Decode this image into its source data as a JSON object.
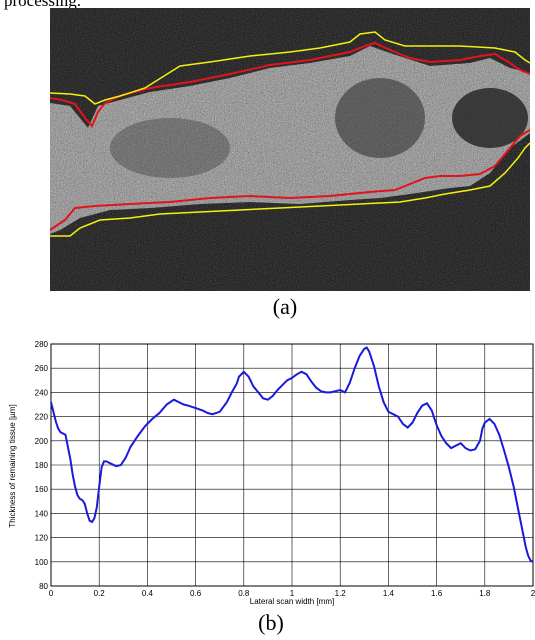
{
  "top_text": "processing.",
  "panel_a": {
    "caption": "(a)",
    "colors": {
      "background": "#0a0a0a",
      "tissue": "#8a8a8a",
      "inner_boundary": "#e3131b",
      "outer_boundary": "#f2f20e"
    }
  },
  "panel_b": {
    "caption": "(b)"
  },
  "chart_data": {
    "type": "line",
    "title": "",
    "xlabel": "Lateral scan width [mm]",
    "ylabel": "Thickness of remaining tissue [µm]",
    "xlim": [
      0,
      2
    ],
    "ylim": [
      80,
      280
    ],
    "xticks": [
      "0",
      "0.2",
      "0.4",
      "0.6",
      "0.8",
      "1",
      "1.2",
      "1.4",
      "1.6",
      "1.8",
      "2"
    ],
    "yticks": [
      "80",
      "100",
      "120",
      "140",
      "160",
      "180",
      "200",
      "220",
      "240",
      "260",
      "280"
    ],
    "grid": true,
    "series": [
      {
        "color": "#1a1adb",
        "x": [
          0,
          0.01,
          0.02,
          0.03,
          0.04,
          0.05,
          0.06,
          0.07,
          0.08,
          0.09,
          0.1,
          0.11,
          0.12,
          0.13,
          0.14,
          0.15,
          0.16,
          0.17,
          0.18,
          0.19,
          0.2,
          0.21,
          0.22,
          0.23,
          0.24,
          0.25,
          0.27,
          0.29,
          0.31,
          0.33,
          0.36,
          0.39,
          0.42,
          0.45,
          0.48,
          0.51,
          0.53,
          0.55,
          0.57,
          0.6,
          0.63,
          0.65,
          0.67,
          0.7,
          0.73,
          0.75,
          0.77,
          0.78,
          0.8,
          0.82,
          0.84,
          0.86,
          0.88,
          0.9,
          0.92,
          0.94,
          0.96,
          0.98,
          1.0,
          1.02,
          1.04,
          1.06,
          1.08,
          1.1,
          1.12,
          1.14,
          1.16,
          1.18,
          1.2,
          1.22,
          1.24,
          1.26,
          1.28,
          1.3,
          1.31,
          1.32,
          1.34,
          1.36,
          1.38,
          1.4,
          1.42,
          1.44,
          1.46,
          1.48,
          1.5,
          1.52,
          1.54,
          1.56,
          1.58,
          1.6,
          1.62,
          1.64,
          1.66,
          1.68,
          1.7,
          1.72,
          1.74,
          1.76,
          1.78,
          1.79,
          1.8,
          1.82,
          1.84,
          1.86,
          1.88,
          1.9,
          1.92,
          1.94,
          1.96,
          1.97,
          1.98,
          1.99,
          2.0
        ],
        "values": [
          232,
          224,
          216,
          210,
          207,
          206,
          205,
          195,
          185,
          172,
          162,
          155,
          152,
          151,
          148,
          140,
          134,
          133,
          136,
          145,
          162,
          178,
          183,
          183,
          182,
          181,
          179,
          180,
          186,
          195,
          204,
          212,
          218,
          223,
          230,
          234,
          232,
          230,
          229,
          227,
          225,
          223,
          222,
          224,
          232,
          240,
          247,
          253,
          257,
          253,
          245,
          240,
          235,
          234,
          237,
          242,
          246,
          250,
          252,
          255,
          257,
          255,
          249,
          244,
          241,
          240,
          240,
          241,
          242,
          240,
          248,
          260,
          270,
          276,
          277,
          274,
          262,
          245,
          232,
          224,
          222,
          220,
          214,
          211,
          215,
          223,
          229,
          231,
          225,
          213,
          204,
          198,
          194,
          196,
          198,
          194,
          192,
          193,
          200,
          210,
          215,
          218,
          214,
          205,
          192,
          178,
          162,
          142,
          122,
          112,
          105,
          101,
          100
        ]
      }
    ]
  }
}
